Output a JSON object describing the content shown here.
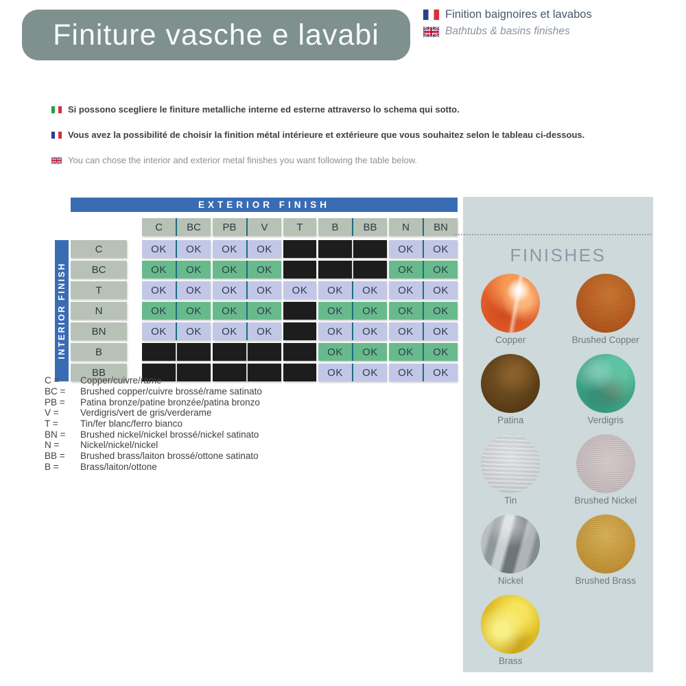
{
  "header": {
    "title": "Finiture vasche e lavabi",
    "subtitle_fr": "Finition baignoires et lavabos",
    "subtitle_en": "Bathtubs & basins finishes"
  },
  "intro": [
    {
      "lang": "it",
      "text": "Si possono scegliere le finiture metalliche interne ed esterne attraverso lo schema qui sotto."
    },
    {
      "lang": "fr",
      "text": "Vous avez la possibilité de choisir la finition métal intérieure et extérieure que vous souhaitez selon le tableau ci-dessous."
    },
    {
      "lang": "en",
      "text": "You can chose the interior and exterior metal finishes you want following the table below."
    }
  ],
  "matrix": {
    "exterior_label": "EXTERIOR FINISH",
    "interior_label": "INTERIOR FINISH",
    "columns": [
      "C",
      "BC",
      "PB",
      "V",
      "T",
      "B",
      "BB",
      "N",
      "BN"
    ],
    "column_groups": [
      [
        0,
        1
      ],
      [
        2,
        3
      ],
      [
        4
      ],
      [
        5,
        6
      ],
      [
        7,
        8
      ]
    ],
    "rows": [
      {
        "label": "C",
        "tone": "lavender",
        "cells": [
          "OK",
          "OK",
          "OK",
          "OK",
          "",
          "",
          "",
          "OK",
          "OK"
        ]
      },
      {
        "label": "BC",
        "tone": "green",
        "cells": [
          "OK",
          "OK",
          "OK",
          "OK",
          "",
          "",
          "",
          "OK",
          "OK"
        ]
      },
      {
        "label": "T",
        "tone": "lavender",
        "cells": [
          "OK",
          "OK",
          "OK",
          "OK",
          "OK",
          "OK",
          "OK",
          "OK",
          "OK"
        ]
      },
      {
        "label": "N",
        "tone": "green",
        "cells": [
          "OK",
          "OK",
          "OK",
          "OK",
          "",
          "OK",
          "OK",
          "OK",
          "OK"
        ]
      },
      {
        "label": "BN",
        "tone": "lavender",
        "cells": [
          "OK",
          "OK",
          "OK",
          "OK",
          "",
          "OK",
          "OK",
          "OK",
          "OK"
        ]
      },
      {
        "label": "B",
        "tone": "green",
        "cells": [
          "",
          "",
          "",
          "",
          "",
          "OK",
          "OK",
          "OK",
          "OK"
        ]
      },
      {
        "label": "BB",
        "tone": "lavender",
        "cells": [
          "",
          "",
          "",
          "",
          "",
          "OK",
          "OK",
          "OK",
          "OK"
        ]
      }
    ]
  },
  "legend": [
    {
      "abbr": "C",
      "text": "Copper/cuivre/rame"
    },
    {
      "abbr": "BC",
      "text": "Brushed copper/cuivre brossé/rame satinato"
    },
    {
      "abbr": "PB",
      "text": "Patina bronze/patine bronzée/patina bronzo"
    },
    {
      "abbr": "V",
      "text": "Verdigris/vert de gris/verderame"
    },
    {
      "abbr": "T",
      "text": "Tin/fer blanc/ferro bianco"
    },
    {
      "abbr": "BN",
      "text": "Brushed nickel/nickel brossé/nickel satinato"
    },
    {
      "abbr": "N",
      "text": "Nickel/nickel/nickel"
    },
    {
      "abbr": "BB",
      "text": "Brushed brass/laiton brossé/ottone satinato"
    },
    {
      "abbr": "B",
      "text": "Brass/laiton/ottone"
    }
  ],
  "finishes_panel": {
    "title": "FINISHES",
    "items": [
      {
        "id": "copper",
        "label": "Copper",
        "color": "#d95f28"
      },
      {
        "id": "brushed-copper",
        "label": "Brushed Copper",
        "color": "#bc6426"
      },
      {
        "id": "patina",
        "label": "Patina",
        "color": "#654320"
      },
      {
        "id": "verdigris",
        "label": "Verdigris",
        "color": "#46b191"
      },
      {
        "id": "tin",
        "label": "Tin",
        "color": "#c9cccf"
      },
      {
        "id": "brushed-nickel",
        "label": "Brushed Nickel",
        "color": "#cdc4c6"
      },
      {
        "id": "nickel",
        "label": "Nickel",
        "color": "#a3a9ad"
      },
      {
        "id": "brushed-brass",
        "label": "Brushed Brass",
        "color": "#c89d43"
      },
      {
        "id": "brass",
        "label": "Brass",
        "color": "#e9cd2a"
      }
    ]
  },
  "colors": {
    "accent_blue": "#3a6cb4",
    "header_box_gray": "#7e918e",
    "row_header_gray": "#b8c1b6",
    "ok_lavender": "#c2c7e7",
    "ok_green": "#68ba8c",
    "blocked_black": "#1d1d1d",
    "divider_teal": "#1a6e7d",
    "panel_background": "#cdd9db"
  }
}
